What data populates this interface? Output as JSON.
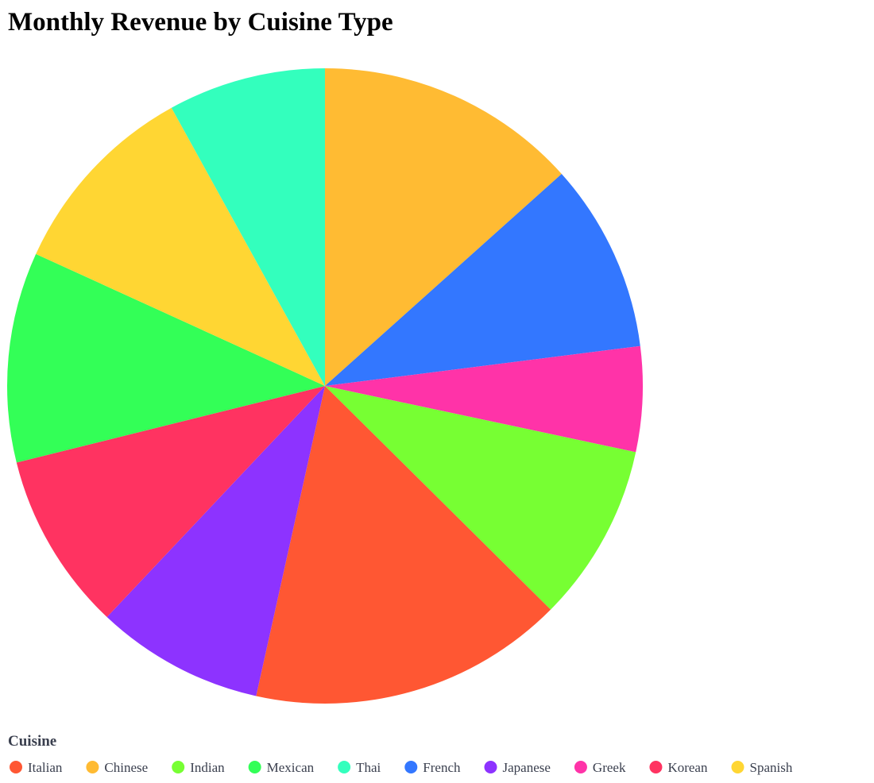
{
  "chart_data": {
    "type": "pie",
    "title": "Monthly Revenue by Cuisine Type",
    "legend": {
      "title": "Cuisine",
      "placement": "bottom"
    },
    "slices_clockwise_from_top": [
      {
        "name": "Chinese",
        "value": 12.5,
        "color": "#FFBB33"
      },
      {
        "name": "French",
        "value": 9.0,
        "color": "#3377FF"
      },
      {
        "name": "Greek",
        "value": 5.0,
        "color": "#FF33A8"
      },
      {
        "name": "Indian",
        "value": 8.5,
        "color": "#77FF33"
      },
      {
        "name": "Italian",
        "value": 15.0,
        "color": "#FF5733"
      },
      {
        "name": "Japanese",
        "value": 8.0,
        "color": "#8D33FF"
      },
      {
        "name": "Korean",
        "value": 8.5,
        "color": "#FF3361"
      },
      {
        "name": "Mexican",
        "value": 10.0,
        "color": "#33FF57"
      },
      {
        "name": "Spanish",
        "value": 9.5,
        "color": "#FFD633"
      },
      {
        "name": "Thai",
        "value": 7.5,
        "color": "#33FFBD"
      }
    ],
    "legend_order": [
      "Italian",
      "Chinese",
      "Indian",
      "Mexican",
      "Thai",
      "French",
      "Japanese",
      "Greek",
      "Korean",
      "Spanish"
    ]
  }
}
